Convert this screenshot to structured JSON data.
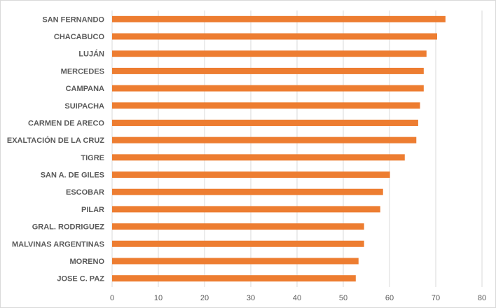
{
  "chart_data": {
    "type": "bar",
    "orientation": "horizontal",
    "title": "",
    "xlabel": "",
    "ylabel": "",
    "categories": [
      "SAN FERNANDO",
      "CHACABUCO",
      "LUJÁN",
      "MERCEDES",
      "CAMPANA",
      "SUIPACHA",
      "CARMEN DE ARECO",
      "EXALTACIÓN DE LA CRUZ",
      "TIGRE",
      "SAN A. DE GILES",
      "ESCOBAR",
      "PILAR",
      "GRAL. RODRIGUEZ",
      "MALVINAS ARGENTINAS",
      "MORENO",
      "JOSE C. PAZ"
    ],
    "values": [
      72.1,
      70.3,
      68.0,
      67.4,
      67.4,
      66.6,
      66.2,
      65.8,
      63.3,
      60.1,
      58.6,
      58.0,
      54.5,
      54.5,
      53.3,
      52.7
    ],
    "xlim": [
      0,
      80
    ],
    "xticks": [
      "0",
      "10",
      "20",
      "30",
      "40",
      "50",
      "60",
      "70",
      "80"
    ],
    "grid": true,
    "legend": "none",
    "bar_color": "#ED7D31",
    "grid_color": "#D9D9D9",
    "text_color": "#595959"
  }
}
